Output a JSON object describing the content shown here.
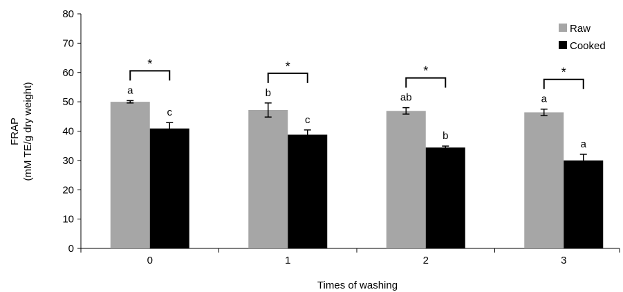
{
  "chart_data": {
    "type": "bar",
    "xlabel": "Times of washing",
    "ylabel_line1": "FRAP",
    "ylabel_line2": "(mM TE/g dry weight)",
    "ylim": [
      0,
      80
    ],
    "yticks": [
      0,
      10,
      20,
      30,
      40,
      50,
      60,
      70,
      80
    ],
    "categories": [
      "0",
      "1",
      "2",
      "3"
    ],
    "series": [
      {
        "name": "Raw",
        "color": "#a6a6a6",
        "values": [
          50.0,
          47.2,
          46.9,
          46.4
        ],
        "errors": [
          0.4,
          2.4,
          1.1,
          1.1
        ],
        "letters": [
          "a",
          "b",
          "ab",
          "a"
        ]
      },
      {
        "name": "Cooked",
        "color": "#000000",
        "values": [
          40.9,
          38.8,
          34.4,
          30.0
        ],
        "errors": [
          2.0,
          1.6,
          0.5,
          2.1
        ],
        "letters": [
          "c",
          "c",
          "b",
          "a"
        ]
      }
    ],
    "significance": [
      "*",
      "*",
      "*",
      "*"
    ],
    "legend_position": "top-right",
    "grid": false
  }
}
